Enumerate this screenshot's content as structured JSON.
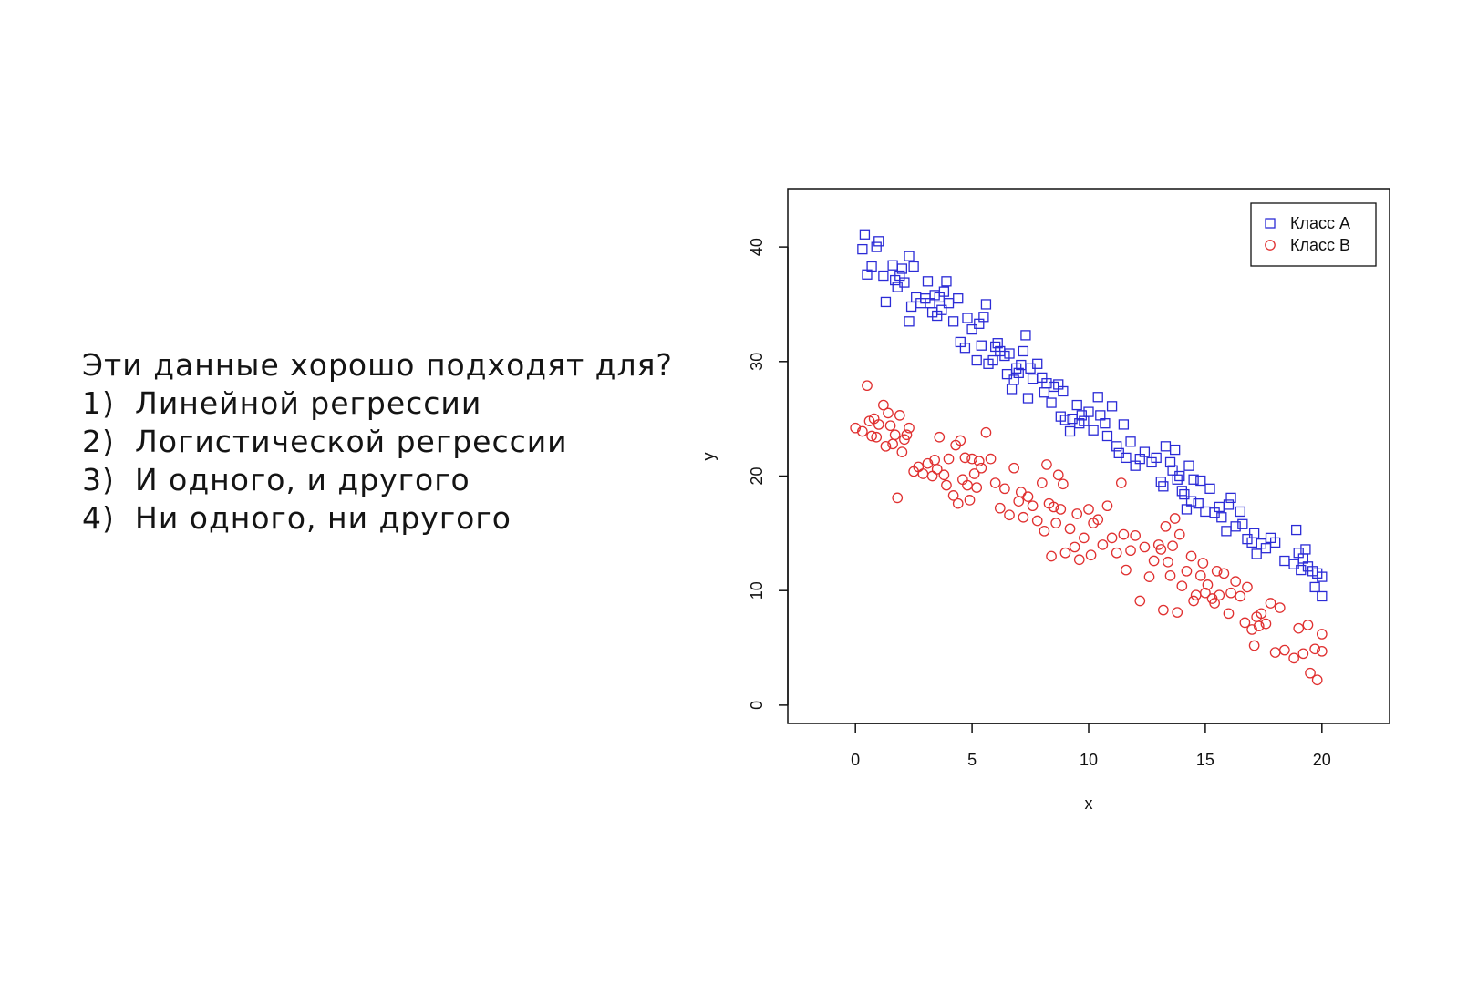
{
  "question": {
    "title": "Эти данные хорошо подходят для?",
    "options": [
      {
        "num": "1)",
        "text": "Линейной регрессии"
      },
      {
        "num": "2)",
        "text": "Логистической регрессии"
      },
      {
        "num": "3)",
        "text": "И одного, и другого"
      },
      {
        "num": "4)",
        "text": "Ни одного, ни другого"
      }
    ]
  },
  "colors": {
    "class_a": "#2b2bd6",
    "class_b": "#e03030",
    "axis": "#111111"
  },
  "chart_data": {
    "type": "scatter",
    "xlabel": "x",
    "ylabel": "y",
    "xlim": [
      -2.9,
      22.9
    ],
    "ylim": [
      -1.6,
      45.1
    ],
    "xticks": [
      0,
      5,
      10,
      15,
      20
    ],
    "yticks": [
      0,
      10,
      20,
      30,
      40
    ],
    "legend_position": "top-right",
    "series": [
      {
        "name": "Класс A",
        "marker": "square",
        "color": "#2b2bd6",
        "points": [
          [
            0.3,
            39.8
          ],
          [
            0.4,
            41.1
          ],
          [
            0.5,
            37.6
          ],
          [
            0.7,
            38.3
          ],
          [
            0.9,
            40.0
          ],
          [
            1.0,
            40.5
          ],
          [
            1.2,
            37.5
          ],
          [
            1.3,
            35.2
          ],
          [
            1.6,
            38.4
          ],
          [
            1.7,
            37.1
          ],
          [
            1.8,
            36.5
          ],
          [
            1.9,
            37.5
          ],
          [
            2.0,
            38.1
          ],
          [
            2.1,
            36.9
          ],
          [
            2.3,
            39.2
          ],
          [
            2.3,
            33.5
          ],
          [
            2.4,
            34.8
          ],
          [
            2.5,
            38.3
          ],
          [
            2.6,
            35.6
          ],
          [
            2.8,
            35.1
          ],
          [
            3.0,
            35.5
          ],
          [
            3.1,
            37.0
          ],
          [
            3.2,
            35.1
          ],
          [
            3.3,
            34.3
          ],
          [
            3.4,
            35.8
          ],
          [
            3.5,
            34.0
          ],
          [
            3.6,
            35.6
          ],
          [
            3.7,
            34.5
          ],
          [
            3.8,
            36.1
          ],
          [
            3.9,
            37.0
          ],
          [
            4.0,
            35.1
          ],
          [
            4.2,
            33.5
          ],
          [
            4.4,
            35.5
          ],
          [
            4.5,
            31.7
          ],
          [
            4.7,
            31.2
          ],
          [
            4.8,
            33.8
          ],
          [
            5.0,
            32.8
          ],
          [
            5.2,
            30.1
          ],
          [
            5.3,
            33.3
          ],
          [
            5.4,
            31.4
          ],
          [
            5.5,
            33.9
          ],
          [
            5.6,
            35.0
          ],
          [
            5.7,
            29.8
          ],
          [
            5.9,
            30.1
          ],
          [
            6.0,
            31.3
          ],
          [
            6.1,
            31.6
          ],
          [
            6.2,
            30.9
          ],
          [
            6.4,
            30.5
          ],
          [
            6.5,
            28.9
          ],
          [
            6.6,
            30.7
          ],
          [
            6.7,
            27.6
          ],
          [
            6.8,
            28.4
          ],
          [
            6.9,
            29.4
          ],
          [
            7.0,
            29.0
          ],
          [
            7.1,
            29.7
          ],
          [
            7.2,
            30.9
          ],
          [
            7.3,
            32.3
          ],
          [
            7.4,
            26.8
          ],
          [
            7.5,
            29.4
          ],
          [
            7.6,
            28.5
          ],
          [
            7.8,
            29.8
          ],
          [
            8.0,
            28.6
          ],
          [
            8.1,
            27.3
          ],
          [
            8.2,
            28.1
          ],
          [
            8.4,
            26.4
          ],
          [
            8.5,
            27.8
          ],
          [
            8.7,
            28.0
          ],
          [
            8.8,
            25.2
          ],
          [
            8.9,
            27.4
          ],
          [
            9.0,
            24.9
          ],
          [
            9.2,
            23.9
          ],
          [
            9.3,
            25.0
          ],
          [
            9.5,
            26.2
          ],
          [
            9.6,
            24.6
          ],
          [
            9.7,
            25.3
          ],
          [
            9.8,
            24.8
          ],
          [
            10.0,
            25.6
          ],
          [
            10.2,
            24.0
          ],
          [
            10.4,
            26.9
          ],
          [
            10.5,
            25.3
          ],
          [
            10.7,
            24.6
          ],
          [
            10.8,
            23.5
          ],
          [
            11.0,
            26.1
          ],
          [
            11.2,
            22.6
          ],
          [
            11.3,
            22.0
          ],
          [
            11.5,
            24.5
          ],
          [
            11.6,
            21.6
          ],
          [
            11.8,
            23.0
          ],
          [
            12.0,
            20.9
          ],
          [
            12.2,
            21.5
          ],
          [
            12.4,
            22.1
          ],
          [
            12.7,
            21.2
          ],
          [
            12.9,
            21.6
          ],
          [
            13.1,
            19.5
          ],
          [
            13.2,
            19.1
          ],
          [
            13.3,
            22.6
          ],
          [
            13.5,
            21.2
          ],
          [
            13.6,
            20.5
          ],
          [
            13.7,
            22.3
          ],
          [
            13.8,
            19.7
          ],
          [
            13.9,
            20.0
          ],
          [
            14.0,
            18.7
          ],
          [
            14.1,
            18.4
          ],
          [
            14.2,
            17.1
          ],
          [
            14.3,
            20.9
          ],
          [
            14.4,
            17.8
          ],
          [
            14.5,
            19.7
          ],
          [
            14.7,
            17.6
          ],
          [
            14.8,
            19.6
          ],
          [
            15.0,
            16.9
          ],
          [
            15.2,
            18.9
          ],
          [
            15.4,
            16.8
          ],
          [
            15.6,
            17.3
          ],
          [
            15.7,
            16.4
          ],
          [
            15.9,
            15.2
          ],
          [
            16.0,
            17.5
          ],
          [
            16.1,
            18.1
          ],
          [
            16.3,
            15.6
          ],
          [
            16.5,
            16.9
          ],
          [
            16.6,
            15.8
          ],
          [
            16.8,
            14.5
          ],
          [
            17.0,
            14.2
          ],
          [
            17.1,
            15.0
          ],
          [
            17.2,
            13.2
          ],
          [
            17.4,
            14.1
          ],
          [
            17.6,
            13.7
          ],
          [
            17.8,
            14.6
          ],
          [
            18.0,
            14.2
          ],
          [
            18.4,
            12.6
          ],
          [
            18.8,
            12.3
          ],
          [
            18.9,
            15.3
          ],
          [
            19.0,
            13.3
          ],
          [
            19.1,
            11.8
          ],
          [
            19.2,
            12.8
          ],
          [
            19.3,
            13.6
          ],
          [
            19.4,
            12.1
          ],
          [
            19.6,
            11.7
          ],
          [
            19.7,
            10.3
          ],
          [
            19.8,
            11.5
          ],
          [
            20.0,
            9.5
          ],
          [
            20.0,
            11.2
          ]
        ]
      },
      {
        "name": "Класс B",
        "marker": "circle",
        "color": "#e03030",
        "points": [
          [
            0.0,
            24.2
          ],
          [
            0.3,
            23.9
          ],
          [
            0.5,
            27.9
          ],
          [
            0.6,
            24.8
          ],
          [
            0.7,
            23.5
          ],
          [
            0.8,
            25.0
          ],
          [
            0.9,
            23.4
          ],
          [
            1.0,
            24.5
          ],
          [
            1.2,
            26.2
          ],
          [
            1.3,
            22.6
          ],
          [
            1.4,
            25.5
          ],
          [
            1.5,
            24.4
          ],
          [
            1.6,
            22.8
          ],
          [
            1.7,
            23.6
          ],
          [
            1.8,
            18.1
          ],
          [
            1.9,
            25.3
          ],
          [
            2.0,
            22.1
          ],
          [
            2.1,
            23.2
          ],
          [
            2.2,
            23.6
          ],
          [
            2.3,
            24.2
          ],
          [
            2.5,
            20.4
          ],
          [
            2.7,
            20.8
          ],
          [
            2.9,
            20.2
          ],
          [
            3.1,
            21.1
          ],
          [
            3.3,
            20.0
          ],
          [
            3.4,
            21.4
          ],
          [
            3.5,
            20.6
          ],
          [
            3.6,
            23.4
          ],
          [
            3.8,
            20.1
          ],
          [
            3.9,
            19.2
          ],
          [
            4.0,
            21.5
          ],
          [
            4.2,
            18.3
          ],
          [
            4.3,
            22.7
          ],
          [
            4.4,
            17.6
          ],
          [
            4.5,
            23.1
          ],
          [
            4.6,
            19.7
          ],
          [
            4.7,
            21.6
          ],
          [
            4.8,
            19.2
          ],
          [
            4.9,
            17.9
          ],
          [
            5.0,
            21.5
          ],
          [
            5.1,
            20.2
          ],
          [
            5.2,
            19.0
          ],
          [
            5.3,
            21.3
          ],
          [
            5.4,
            20.7
          ],
          [
            5.6,
            23.8
          ],
          [
            5.8,
            21.5
          ],
          [
            6.0,
            19.4
          ],
          [
            6.2,
            17.2
          ],
          [
            6.4,
            18.9
          ],
          [
            6.6,
            16.6
          ],
          [
            6.8,
            20.7
          ],
          [
            7.0,
            17.8
          ],
          [
            7.1,
            18.6
          ],
          [
            7.2,
            16.4
          ],
          [
            7.4,
            18.2
          ],
          [
            7.6,
            17.4
          ],
          [
            7.8,
            16.1
          ],
          [
            8.0,
            19.4
          ],
          [
            8.1,
            15.2
          ],
          [
            8.2,
            21.0
          ],
          [
            8.3,
            17.6
          ],
          [
            8.4,
            13.0
          ],
          [
            8.5,
            17.3
          ],
          [
            8.6,
            15.9
          ],
          [
            8.7,
            20.1
          ],
          [
            8.8,
            17.1
          ],
          [
            8.9,
            19.3
          ],
          [
            9.0,
            13.3
          ],
          [
            9.2,
            15.4
          ],
          [
            9.4,
            13.8
          ],
          [
            9.5,
            16.7
          ],
          [
            9.6,
            12.7
          ],
          [
            9.8,
            14.6
          ],
          [
            10.0,
            17.1
          ],
          [
            10.1,
            13.1
          ],
          [
            10.2,
            15.9
          ],
          [
            10.4,
            16.2
          ],
          [
            10.6,
            14.0
          ],
          [
            10.8,
            17.4
          ],
          [
            11.0,
            14.6
          ],
          [
            11.2,
            13.3
          ],
          [
            11.4,
            19.4
          ],
          [
            11.5,
            14.9
          ],
          [
            11.6,
            11.8
          ],
          [
            11.8,
            13.5
          ],
          [
            12.0,
            14.8
          ],
          [
            12.2,
            9.1
          ],
          [
            12.4,
            13.8
          ],
          [
            12.6,
            11.2
          ],
          [
            12.8,
            12.6
          ],
          [
            13.0,
            14.0
          ],
          [
            13.1,
            13.6
          ],
          [
            13.2,
            8.3
          ],
          [
            13.3,
            15.6
          ],
          [
            13.4,
            12.5
          ],
          [
            13.5,
            11.3
          ],
          [
            13.6,
            13.9
          ],
          [
            13.7,
            16.3
          ],
          [
            13.8,
            8.1
          ],
          [
            13.9,
            14.9
          ],
          [
            14.0,
            10.4
          ],
          [
            14.2,
            11.7
          ],
          [
            14.4,
            13.0
          ],
          [
            14.5,
            9.1
          ],
          [
            14.6,
            9.6
          ],
          [
            14.8,
            11.3
          ],
          [
            14.9,
            12.4
          ],
          [
            15.0,
            9.8
          ],
          [
            15.1,
            10.5
          ],
          [
            15.3,
            9.3
          ],
          [
            15.4,
            8.9
          ],
          [
            15.5,
            11.7
          ],
          [
            15.6,
            9.6
          ],
          [
            15.8,
            11.5
          ],
          [
            16.0,
            8.0
          ],
          [
            16.1,
            9.8
          ],
          [
            16.3,
            10.8
          ],
          [
            16.5,
            9.5
          ],
          [
            16.7,
            7.2
          ],
          [
            16.8,
            10.3
          ],
          [
            17.0,
            6.6
          ],
          [
            17.1,
            5.2
          ],
          [
            17.2,
            7.7
          ],
          [
            17.3,
            6.9
          ],
          [
            17.4,
            8.0
          ],
          [
            17.6,
            7.1
          ],
          [
            17.8,
            8.9
          ],
          [
            18.0,
            4.6
          ],
          [
            18.2,
            8.5
          ],
          [
            18.4,
            4.8
          ],
          [
            18.8,
            4.1
          ],
          [
            19.0,
            6.7
          ],
          [
            19.2,
            4.5
          ],
          [
            19.4,
            7.0
          ],
          [
            19.5,
            2.8
          ],
          [
            19.7,
            4.9
          ],
          [
            19.8,
            2.2
          ],
          [
            20.0,
            6.2
          ],
          [
            20.0,
            4.7
          ]
        ]
      }
    ]
  }
}
